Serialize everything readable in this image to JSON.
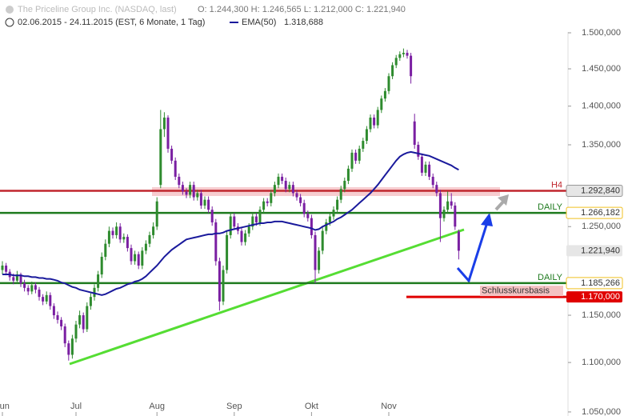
{
  "chart_data": {
    "type": "candlestick",
    "title": "The Priceline Group Inc. (NASDAQ, last)",
    "ohlc_text": "O: 1.244,300  H: 1.246,565  L: 1.212,000  C: 1.221,940",
    "subtitle": "02.06.2015 - 24.11.2015 (EST, 6 Monate, 1 Tag)",
    "categories": [
      "Jun",
      null,
      null,
      null,
      null,
      null,
      null,
      null,
      null,
      null,
      null,
      null,
      null,
      null,
      null,
      null,
      null,
      null,
      null,
      null,
      "Jul",
      null,
      null,
      null,
      null,
      null,
      null,
      null,
      null,
      null,
      null,
      null,
      null,
      null,
      null,
      null,
      null,
      null,
      null,
      null,
      null,
      null,
      "Aug",
      null,
      null,
      null,
      null,
      null,
      null,
      null,
      null,
      null,
      null,
      null,
      null,
      null,
      null,
      null,
      null,
      null,
      null,
      null,
      null,
      "Sep",
      null,
      null,
      null,
      null,
      null,
      null,
      null,
      null,
      null,
      null,
      null,
      null,
      null,
      null,
      null,
      null,
      null,
      null,
      null,
      null,
      "Okt",
      null,
      null,
      null,
      null,
      null,
      null,
      null,
      null,
      null,
      null,
      null,
      null,
      null,
      null,
      null,
      null,
      null,
      null,
      null,
      null,
      "Nov",
      null,
      null,
      null,
      null,
      null,
      null,
      null,
      null,
      null,
      null,
      null,
      null,
      null,
      null,
      null,
      null,
      null,
      null,
      null
    ],
    "ohlc": [
      [
        1200,
        1210,
        1195,
        1205
      ],
      [
        1205,
        1208,
        1194,
        1198
      ],
      [
        1198,
        1201,
        1188,
        1192
      ],
      [
        1192,
        1196,
        1184,
        1188
      ],
      [
        1188,
        1199,
        1185,
        1195
      ],
      [
        1195,
        1197,
        1181,
        1185
      ],
      [
        1185,
        1189,
        1176,
        1180
      ],
      [
        1180,
        1183,
        1172,
        1176
      ],
      [
        1176,
        1187,
        1173,
        1183
      ],
      [
        1183,
        1186,
        1174,
        1178
      ],
      [
        1178,
        1181,
        1166,
        1170
      ],
      [
        1170,
        1173,
        1161,
        1165
      ],
      [
        1165,
        1176,
        1162,
        1172
      ],
      [
        1172,
        1175,
        1156,
        1160
      ],
      [
        1160,
        1163,
        1146,
        1150
      ],
      [
        1150,
        1154,
        1141,
        1145
      ],
      [
        1145,
        1148,
        1134,
        1138
      ],
      [
        1138,
        1141,
        1116,
        1120
      ],
      [
        1120,
        1123,
        1102,
        1108
      ],
      [
        1108,
        1129,
        1104,
        1125
      ],
      [
        1125,
        1144,
        1121,
        1140
      ],
      [
        1140,
        1155,
        1136,
        1150
      ],
      [
        1150,
        1153,
        1131,
        1135
      ],
      [
        1135,
        1164,
        1132,
        1160
      ],
      [
        1160,
        1174,
        1156,
        1170
      ],
      [
        1170,
        1184,
        1166,
        1180
      ],
      [
        1180,
        1199,
        1176,
        1195
      ],
      [
        1195,
        1220,
        1191,
        1215
      ],
      [
        1215,
        1235,
        1211,
        1230
      ],
      [
        1230,
        1250,
        1226,
        1245
      ],
      [
        1245,
        1249,
        1236,
        1240
      ],
      [
        1240,
        1255,
        1236,
        1250
      ],
      [
        1250,
        1254,
        1231,
        1235
      ],
      [
        1235,
        1242,
        1231,
        1238
      ],
      [
        1238,
        1241,
        1221,
        1225
      ],
      [
        1225,
        1229,
        1206,
        1210
      ],
      [
        1210,
        1222,
        1206,
        1218
      ],
      [
        1218,
        1221,
        1201,
        1205
      ],
      [
        1205,
        1226,
        1201,
        1222
      ],
      [
        1222,
        1234,
        1218,
        1230
      ],
      [
        1230,
        1244,
        1226,
        1240
      ],
      [
        1240,
        1255,
        1236,
        1250
      ],
      [
        1250,
        1285,
        1246,
        1280
      ],
      [
        1300,
        1395,
        1296,
        1370
      ],
      [
        1370,
        1392,
        1360,
        1385
      ],
      [
        1385,
        1388,
        1340,
        1345
      ],
      [
        1345,
        1349,
        1326,
        1330
      ],
      [
        1330,
        1334,
        1306,
        1310
      ],
      [
        1310,
        1314,
        1296,
        1300
      ],
      [
        1300,
        1304,
        1288,
        1292
      ],
      [
        1292,
        1296,
        1284,
        1288
      ],
      [
        1288,
        1304,
        1284,
        1300
      ],
      [
        1300,
        1304,
        1281,
        1285
      ],
      [
        1285,
        1294,
        1281,
        1290
      ],
      [
        1290,
        1294,
        1271,
        1275
      ],
      [
        1275,
        1286,
        1271,
        1282
      ],
      [
        1282,
        1286,
        1266,
        1270
      ],
      [
        1270,
        1274,
        1251,
        1255
      ],
      [
        1255,
        1259,
        1205,
        1210
      ],
      [
        1210,
        1214,
        1155,
        1165
      ],
      [
        1165,
        1205,
        1161,
        1200
      ],
      [
        1200,
        1245,
        1196,
        1240
      ],
      [
        1240,
        1266,
        1236,
        1262
      ],
      [
        1262,
        1266,
        1246,
        1250
      ],
      [
        1250,
        1254,
        1241,
        1245
      ],
      [
        1245,
        1249,
        1228,
        1232
      ],
      [
        1232,
        1246,
        1228,
        1242
      ],
      [
        1242,
        1254,
        1238,
        1250
      ],
      [
        1250,
        1266,
        1246,
        1262
      ],
      [
        1262,
        1266,
        1251,
        1255
      ],
      [
        1255,
        1274,
        1251,
        1270
      ],
      [
        1270,
        1284,
        1266,
        1280
      ],
      [
        1280,
        1284,
        1274,
        1278
      ],
      [
        1278,
        1294,
        1274,
        1290
      ],
      [
        1290,
        1304,
        1286,
        1300
      ],
      [
        1300,
        1314,
        1296,
        1310
      ],
      [
        1310,
        1314,
        1301,
        1305
      ],
      [
        1305,
        1309,
        1291,
        1295
      ],
      [
        1295,
        1304,
        1291,
        1300
      ],
      [
        1300,
        1304,
        1286,
        1290
      ],
      [
        1290,
        1294,
        1281,
        1285
      ],
      [
        1285,
        1289,
        1274,
        1278
      ],
      [
        1278,
        1282,
        1261,
        1265
      ],
      [
        1265,
        1269,
        1256,
        1260
      ],
      [
        1260,
        1264,
        1236,
        1240
      ],
      [
        1240,
        1244,
        1185,
        1200
      ],
      [
        1200,
        1226,
        1196,
        1222
      ],
      [
        1222,
        1249,
        1218,
        1245
      ],
      [
        1245,
        1259,
        1241,
        1255
      ],
      [
        1255,
        1266,
        1251,
        1262
      ],
      [
        1262,
        1274,
        1258,
        1270
      ],
      [
        1270,
        1286,
        1266,
        1282
      ],
      [
        1282,
        1299,
        1278,
        1295
      ],
      [
        1295,
        1309,
        1291,
        1305
      ],
      [
        1305,
        1324,
        1301,
        1320
      ],
      [
        1320,
        1344,
        1316,
        1340
      ],
      [
        1340,
        1344,
        1326,
        1330
      ],
      [
        1330,
        1349,
        1326,
        1345
      ],
      [
        1345,
        1359,
        1341,
        1355
      ],
      [
        1355,
        1374,
        1351,
        1370
      ],
      [
        1370,
        1389,
        1366,
        1385
      ],
      [
        1385,
        1389,
        1371,
        1375
      ],
      [
        1375,
        1399,
        1371,
        1395
      ],
      [
        1395,
        1414,
        1391,
        1410
      ],
      [
        1410,
        1424,
        1406,
        1420
      ],
      [
        1420,
        1444,
        1416,
        1440
      ],
      [
        1440,
        1459,
        1436,
        1455
      ],
      [
        1455,
        1469,
        1451,
        1465
      ],
      [
        1465,
        1474,
        1461,
        1470
      ],
      [
        1470,
        1478,
        1466,
        1472
      ],
      [
        1472,
        1476,
        1464,
        1468
      ],
      [
        1468,
        1472,
        1430,
        1440
      ],
      [
        1380,
        1390,
        1345,
        1350
      ],
      [
        1350,
        1354,
        1331,
        1335
      ],
      [
        1335,
        1339,
        1311,
        1315
      ],
      [
        1315,
        1329,
        1311,
        1325
      ],
      [
        1325,
        1329,
        1306,
        1310
      ],
      [
        1310,
        1314,
        1296,
        1300
      ],
      [
        1300,
        1304,
        1286,
        1290
      ],
      [
        1290,
        1294,
        1232,
        1260
      ],
      [
        1260,
        1274,
        1256,
        1270
      ],
      [
        1270,
        1292,
        1266,
        1280
      ],
      [
        1280,
        1290,
        1271,
        1275
      ],
      [
        1275,
        1279,
        1246,
        1250
      ],
      [
        1244.3,
        1246.565,
        1212,
        1221.94
      ]
    ],
    "up_color": "#2e8b2e",
    "down_color": "#7a1fa2",
    "series": [
      {
        "name": "EMA(50)",
        "color": "#1a1a9c",
        "last_label": "1.318,688",
        "values": [
          1195,
          1195,
          1195,
          1194,
          1194,
          1194,
          1193,
          1193,
          1192,
          1192,
          1191,
          1191,
          1190,
          1190,
          1189,
          1188,
          1186,
          1185,
          1183,
          1181,
          1180,
          1178,
          1177,
          1176,
          1175,
          1174,
          1173,
          1172,
          1173,
          1175,
          1177,
          1179,
          1180,
          1182,
          1184,
          1185,
          1187,
          1188,
          1190,
          1193,
          1197,
          1201,
          1205,
          1210,
          1215,
          1219,
          1223,
          1226,
          1229,
          1232,
          1235,
          1236,
          1237,
          1238,
          1239,
          1240,
          1241,
          1241,
          1242,
          1242,
          1243,
          1245,
          1246,
          1247,
          1248,
          1249,
          1250,
          1251,
          1252,
          1253,
          1254,
          1254,
          1255,
          1255,
          1256,
          1256,
          1256,
          1255,
          1254,
          1253,
          1252,
          1251,
          1250,
          1249,
          1248,
          1246,
          1247,
          1250,
          1252,
          1254,
          1256,
          1259,
          1261,
          1264,
          1267,
          1270,
          1274,
          1278,
          1282,
          1286,
          1290,
          1295,
          1300,
          1306,
          1312,
          1318,
          1324,
          1330,
          1335,
          1338,
          1340,
          1341,
          1340,
          1339,
          1338,
          1337,
          1336,
          1334,
          1332,
          1330,
          1328,
          1326,
          1324,
          1321,
          1318.688
        ]
      }
    ],
    "last_price": {
      "value": 1221.94,
      "label": "1.221,940"
    },
    "levels": [
      {
        "name": "H4",
        "value": 1292.84,
        "label": "1.292,840",
        "color": "#c0262d"
      },
      {
        "name": "DAILY",
        "value": 1266.182,
        "label": "1.266,182",
        "color": "#1e7a1e"
      },
      {
        "name": "DAILY",
        "value": 1185.266,
        "label": "1.185,266",
        "color": "#1e7a1e"
      },
      {
        "name": "Schlusskursbasis",
        "value": 1170,
        "label": "1.170,000",
        "color": "#e00000"
      }
    ],
    "log_scale": true,
    "ylim": [
      1046,
      1547
    ],
    "yticks": [
      {
        "value": 1050,
        "label": "1.050,000"
      },
      {
        "value": 1100,
        "label": "1.100,000"
      },
      {
        "value": 1150,
        "label": "1.150,000"
      },
      {
        "value": 1250,
        "label": "1.250,000"
      },
      {
        "value": 1350,
        "label": "1.350,000"
      },
      {
        "value": 1400,
        "label": "1.400,000"
      },
      {
        "value": 1450,
        "label": "1.450,000"
      },
      {
        "value": 1500,
        "label": "1.500,000"
      }
    ]
  }
}
